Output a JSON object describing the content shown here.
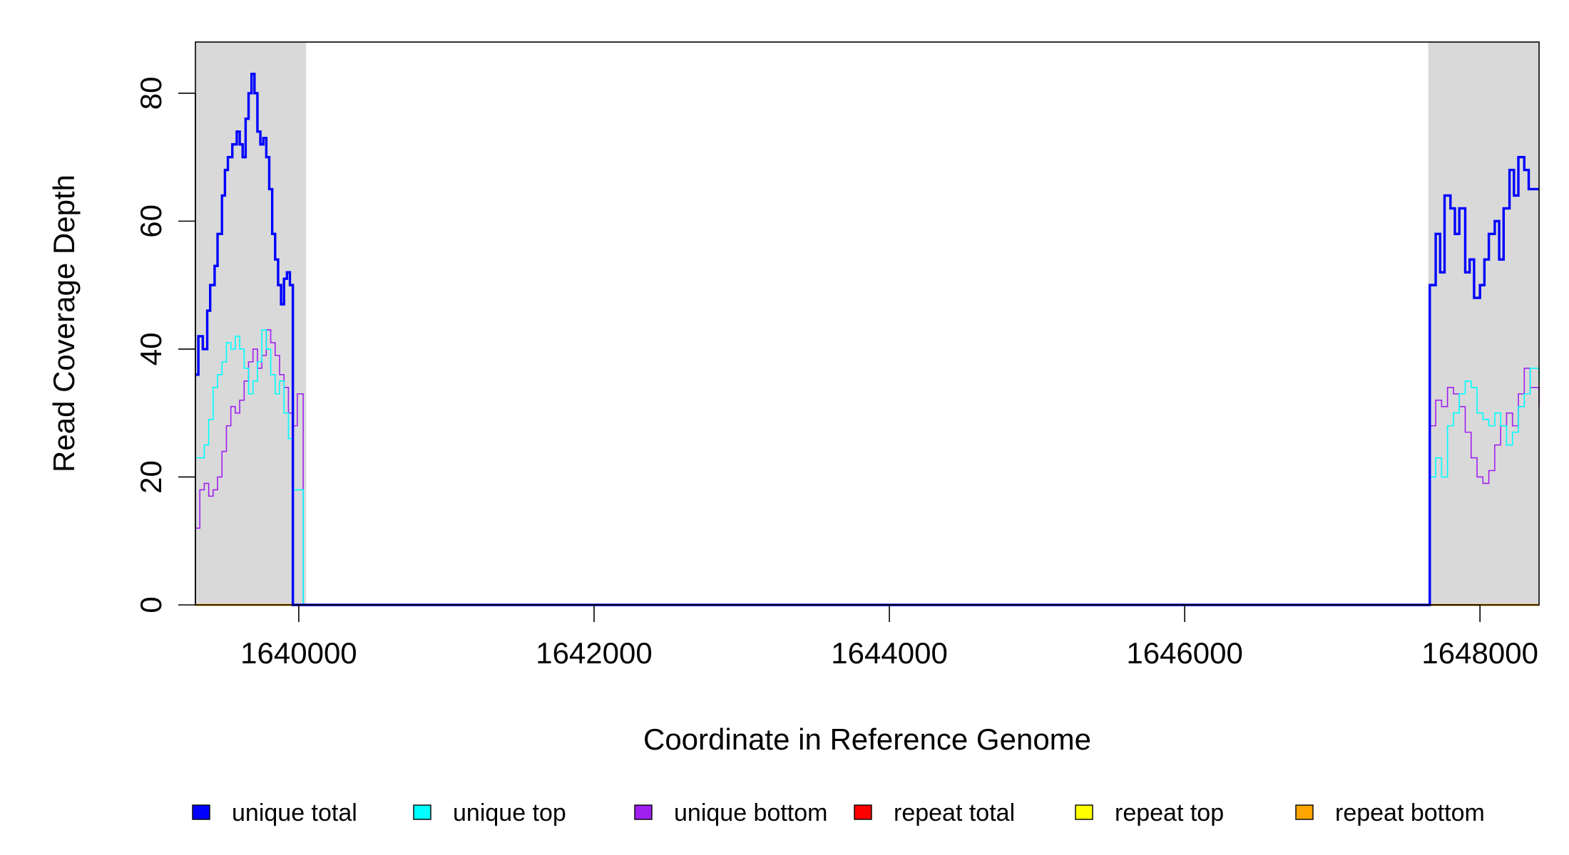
{
  "chart_data": {
    "type": "line",
    "title": "",
    "xlabel": "Coordinate in Reference Genome",
    "ylabel": "Read Coverage Depth",
    "xlim": [
      1639300,
      1648400
    ],
    "ylim": [
      0,
      88
    ],
    "x_ticks": [
      1640000,
      1642000,
      1644000,
      1646000,
      1648000
    ],
    "x_tick_labels": [
      "1640000",
      "1642000",
      "1644000",
      "1646000",
      "1648000"
    ],
    "y_ticks": [
      0,
      20,
      40,
      60,
      80
    ],
    "y_tick_labels": [
      "0",
      "20",
      "40",
      "60",
      "80"
    ],
    "shaded_regions": [
      [
        1639300,
        1640050
      ],
      [
        1647650,
        1648400
      ]
    ],
    "shade_color": "#d9d9d9",
    "grid": false,
    "legend": {
      "position": "bottom",
      "entries": [
        {
          "label": "unique total",
          "color": "#0000ff"
        },
        {
          "label": "unique top",
          "color": "#00ffff"
        },
        {
          "label": "unique bottom",
          "color": "#a020f0"
        },
        {
          "label": "repeat total",
          "color": "#ff0000"
        },
        {
          "label": "repeat top",
          "color": "#ffff00"
        },
        {
          "label": "repeat bottom",
          "color": "#ffa500"
        }
      ]
    },
    "series": [
      {
        "name": "unique total",
        "color": "#0000ff",
        "x": [
          1639300,
          1639320,
          1639350,
          1639380,
          1639400,
          1639430,
          1639450,
          1639480,
          1639500,
          1639520,
          1639550,
          1639580,
          1639600,
          1639620,
          1639640,
          1639660,
          1639680,
          1639700,
          1639720,
          1639740,
          1639760,
          1639780,
          1639800,
          1639820,
          1639840,
          1639860,
          1639880,
          1639900,
          1639920,
          1639940,
          1639960,
          1639980,
          1640000,
          1640020,
          1640040,
          1640060,
          1640070,
          1647650,
          1647660,
          1647700,
          1647730,
          1647760,
          1647800,
          1647830,
          1647860,
          1647900,
          1647930,
          1647960,
          1648000,
          1648030,
          1648060,
          1648100,
          1648130,
          1648160,
          1648200,
          1648230,
          1648260,
          1648300,
          1648330,
          1648360,
          1648400
        ],
        "y": [
          36,
          42,
          40,
          46,
          50,
          53,
          58,
          64,
          68,
          70,
          72,
          74,
          72,
          70,
          76,
          80,
          83,
          80,
          74,
          72,
          73,
          70,
          65,
          58,
          54,
          50,
          47,
          51,
          52,
          50,
          0,
          0,
          0,
          0,
          0,
          0,
          0,
          0,
          50,
          58,
          52,
          64,
          62,
          58,
          62,
          52,
          54,
          48,
          50,
          54,
          58,
          60,
          54,
          62,
          68,
          64,
          70,
          68,
          65,
          65,
          65
        ]
      },
      {
        "name": "unique top",
        "color": "#00ffff",
        "x": [
          1639300,
          1639330,
          1639360,
          1639390,
          1639420,
          1639450,
          1639480,
          1639510,
          1639540,
          1639570,
          1639600,
          1639630,
          1639660,
          1639690,
          1639720,
          1639750,
          1639780,
          1639810,
          1639840,
          1639870,
          1639900,
          1639930,
          1639960,
          1639990,
          1640030,
          1640060,
          1640070,
          1647650,
          1647660,
          1647700,
          1647740,
          1647780,
          1647820,
          1647860,
          1647900,
          1647940,
          1647980,
          1648020,
          1648060,
          1648100,
          1648140,
          1648180,
          1648220,
          1648260,
          1648300,
          1648340,
          1648400
        ],
        "y": [
          23,
          23,
          25,
          29,
          34,
          36,
          38,
          41,
          40,
          42,
          40,
          37,
          33,
          35,
          38,
          43,
          40,
          36,
          33,
          35,
          30,
          26,
          18,
          18,
          0,
          0,
          0,
          0,
          20,
          23,
          20,
          28,
          30,
          33,
          35,
          34,
          30,
          29,
          28,
          30,
          28,
          25,
          27,
          31,
          33,
          37,
          35
        ]
      },
      {
        "name": "unique bottom",
        "color": "#a020f0",
        "x": [
          1639300,
          1639330,
          1639360,
          1639390,
          1639420,
          1639450,
          1639480,
          1639510,
          1639540,
          1639570,
          1639600,
          1639630,
          1639660,
          1639690,
          1639720,
          1639750,
          1639780,
          1639810,
          1639840,
          1639870,
          1639900,
          1639930,
          1639960,
          1639990,
          1640030,
          1640060,
          1640070,
          1647650,
          1647660,
          1647700,
          1647740,
          1647780,
          1647820,
          1647860,
          1647900,
          1647940,
          1647980,
          1648020,
          1648060,
          1648100,
          1648140,
          1648180,
          1648220,
          1648260,
          1648300,
          1648340,
          1648400
        ],
        "y": [
          12,
          18,
          19,
          17,
          18,
          20,
          24,
          28,
          31,
          30,
          32,
          35,
          38,
          40,
          37,
          39,
          43,
          41,
          39,
          36,
          34,
          30,
          28,
          33,
          0,
          0,
          0,
          0,
          28,
          32,
          31,
          34,
          33,
          31,
          27,
          23,
          20,
          19,
          21,
          25,
          28,
          30,
          28,
          33,
          37,
          34,
          31
        ]
      },
      {
        "name": "repeat total",
        "color": "#ff0000",
        "x": [
          1639300,
          1648400
        ],
        "y": [
          0,
          0
        ]
      },
      {
        "name": "repeat top",
        "color": "#ffff00",
        "x": [
          1639300,
          1648400
        ],
        "y": [
          0,
          0
        ]
      },
      {
        "name": "repeat bottom",
        "color": "#ffa500",
        "x": [
          1639300,
          1648400
        ],
        "y": [
          0,
          0
        ]
      }
    ]
  }
}
